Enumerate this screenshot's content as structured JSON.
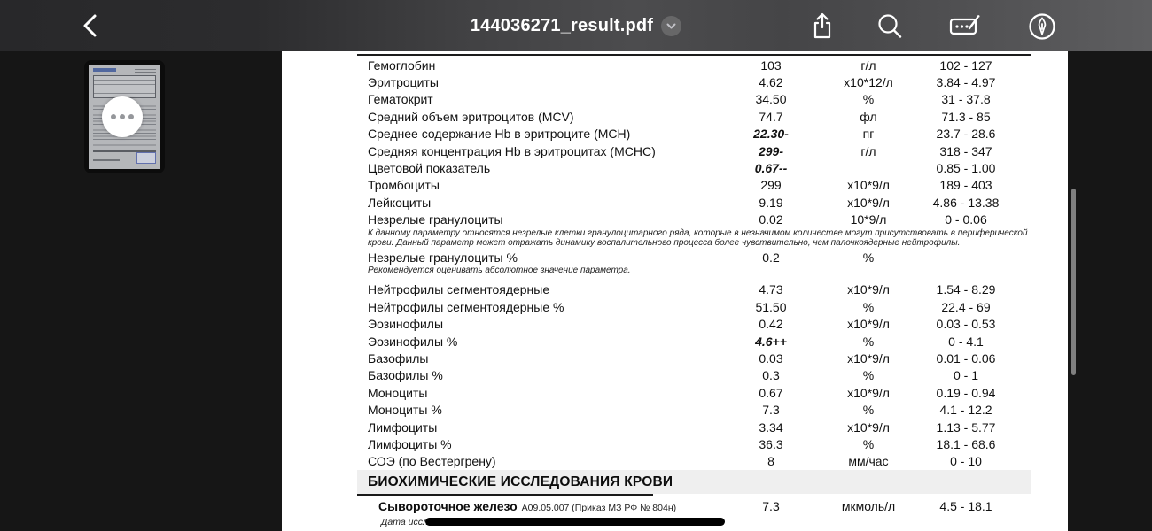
{
  "toolbar": {
    "title": "144036271_result.pdf",
    "back_icon": "chevron-left-icon",
    "title_dropdown_icon": "chevron-down-icon",
    "actions": [
      {
        "icon": "share-icon"
      },
      {
        "icon": "search-icon"
      },
      {
        "icon": "markup-icon"
      },
      {
        "icon": "pen-circle-icon"
      }
    ]
  },
  "sidebar": {
    "thumbnail_more_icon": "ellipsis-icon"
  },
  "document": {
    "rows": [
      {
        "name": "Гемоглобин",
        "value": "103",
        "unit": "г/л",
        "range": "102 - 127",
        "flagged": false
      },
      {
        "name": "Эритроциты",
        "value": "4.62",
        "unit": "х10*12/л",
        "range": "3.84 - 4.97",
        "flagged": false
      },
      {
        "name": "Гематокрит",
        "value": "34.50",
        "unit": "%",
        "range": "31 - 37.8",
        "flagged": false
      },
      {
        "name": "Средний объем эритроцитов (MCV)",
        "value": "74.7",
        "unit": "фл",
        "range": "71.3 - 85",
        "flagged": false
      },
      {
        "name": "Среднее содержание Hb в эритроците (MCH)",
        "value": "22.30-",
        "unit": "пг",
        "range": "23.7 - 28.6",
        "flagged": true
      },
      {
        "name": "Средняя концентрация Hb в эритроцитах (MCHC)",
        "value": "299-",
        "unit": "г/л",
        "range": "318 - 347",
        "flagged": true
      },
      {
        "name": "Цветовой показатель",
        "value": "0.67--",
        "unit": "",
        "range": "0.85 - 1.00",
        "flagged": true
      },
      {
        "name": "Тромбоциты",
        "value": "299",
        "unit": "х10*9/л",
        "range": "189 - 403",
        "flagged": false
      },
      {
        "name": "Лейкоциты",
        "value": "9.19",
        "unit": "х10*9/л",
        "range": "4.86 - 13.38",
        "flagged": false
      },
      {
        "name": "Незрелые гранулоциты",
        "value": "0.02",
        "unit": "10*9/л",
        "range": "0 - 0.06",
        "flagged": false,
        "note": "К данному параметру относятся незрелые клетки гранулоцитарного ряда, которые  в незначимом количестве могут присутствовать в периферической крови. Данный параметр может отражать динамику воспалительного процесса более чувствительно, чем палочкоядерные нейтрофилы."
      },
      {
        "name": "Незрелые гранулоциты %",
        "value": "0.2",
        "unit": "%",
        "range": "",
        "flagged": false,
        "note": "Рекомендуется оценивать абсолютное значение параметра."
      },
      {
        "name": "Нейтрофилы сегментоядерные",
        "value": "4.73",
        "unit": "х10*9/л",
        "range": "1.54 - 8.29",
        "flagged": false
      },
      {
        "name": "Нейтрофилы сегментоядерные %",
        "value": "51.50",
        "unit": "%",
        "range": "22.4 - 69",
        "flagged": false
      },
      {
        "name": "Эозинофилы",
        "value": "0.42",
        "unit": "х10*9/л",
        "range": "0.03 - 0.53",
        "flagged": false
      },
      {
        "name": "Эозинофилы %",
        "value": "4.6++",
        "unit": "%",
        "range": "0 - 4.1",
        "flagged": true
      },
      {
        "name": "Базофилы",
        "value": "0.03",
        "unit": "х10*9/л",
        "range": "0.01 - 0.06",
        "flagged": false
      },
      {
        "name": "Базофилы %",
        "value": "0.3",
        "unit": "%",
        "range": "0 - 1",
        "flagged": false
      },
      {
        "name": "Моноциты",
        "value": "0.67",
        "unit": "х10*9/л",
        "range": "0.19 - 0.94",
        "flagged": false
      },
      {
        "name": "Моноциты %",
        "value": "7.3",
        "unit": "%",
        "range": "4.1 - 12.2",
        "flagged": false
      },
      {
        "name": "Лимфоциты",
        "value": "3.34",
        "unit": "х10*9/л",
        "range": "1.13 - 5.77",
        "flagged": false
      },
      {
        "name": "Лимфоциты %",
        "value": "36.3",
        "unit": "%",
        "range": "18.1 - 68.6",
        "flagged": false
      },
      {
        "name": "СОЭ (по Вестергрену)",
        "value": "8",
        "unit": "мм/час",
        "range": "0 - 10",
        "flagged": false
      }
    ],
    "section_header": "БИОХИМИЧЕСКИЕ ИССЛЕДОВАНИЯ КРОВИ",
    "biochem_row": {
      "name": "Сывороточное железо",
      "code": "А09.05.007 (Приказ МЗ РФ № 804н)",
      "value": "7.3",
      "unit": "мкмоль/л",
      "range": "4.5 - 18.1"
    },
    "redacted_line_prefix": "Дата иссле"
  },
  "colors": {
    "toolbar_dark": "#28282a",
    "toolbar_light": "#5e5e60",
    "content_background": "#161616",
    "page_background": "#ffffff",
    "section_band": "#efefef",
    "redaction": "#000000",
    "scrollbar_thumb": "#7f7f7f"
  }
}
